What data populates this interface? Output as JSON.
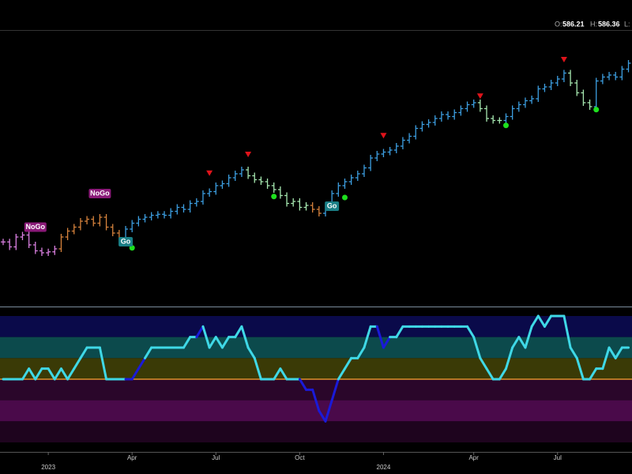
{
  "chart_data": {
    "type": "ohlc",
    "header": {
      "open_label": "O:",
      "open": "586.21",
      "high_label": "H:",
      "high": "586.36",
      "low_label": "L:"
    },
    "categories": [
      null,
      null,
      null,
      null,
      null,
      null,
      null,
      "2023",
      null,
      null,
      null,
      null,
      null,
      null,
      null,
      null,
      null,
      null,
      null,
      null,
      "Apr",
      null,
      null,
      null,
      null,
      null,
      null,
      null,
      null,
      null,
      null,
      null,
      null,
      "Jul",
      null,
      null,
      null,
      null,
      null,
      null,
      null,
      null,
      null,
      null,
      null,
      null,
      "Oct",
      null,
      null,
      null,
      null,
      null,
      null,
      null,
      null,
      null,
      null,
      null,
      null,
      "2024",
      null,
      null,
      null,
      null,
      null,
      null,
      null,
      null,
      null,
      null,
      null,
      null,
      null,
      "Apr",
      null,
      null,
      null,
      null,
      null,
      null,
      null,
      null,
      null,
      null,
      null,
      null,
      "Jul",
      null,
      null,
      null,
      null,
      null,
      null,
      null,
      null,
      null,
      null,
      null
    ],
    "values": [
      405,
      400,
      410,
      412,
      402,
      396,
      394,
      395,
      398,
      410,
      416,
      420,
      426,
      428,
      424,
      430,
      420,
      414,
      408,
      418,
      424,
      428,
      430,
      432,
      433,
      432,
      436,
      440,
      438,
      444,
      446,
      454,
      456,
      462,
      464,
      470,
      474,
      478,
      472,
      468,
      466,
      462,
      458,
      452,
      444,
      446,
      440,
      442,
      438,
      434,
      440,
      454,
      462,
      466,
      470,
      474,
      480,
      490,
      494,
      496,
      498,
      502,
      508,
      512,
      520,
      524,
      526,
      530,
      534,
      532,
      536,
      540,
      544,
      546,
      540,
      530,
      528,
      528,
      532,
      540,
      544,
      548,
      550,
      560,
      562,
      566,
      570,
      576,
      566,
      556,
      546,
      542,
      568,
      572,
      574,
      572,
      580,
      586
    ],
    "colors": [
      "#d97fe0",
      "#d97fe0",
      "#d97fe0",
      "#d97fe0",
      "#d97fe0",
      "#d97fe0",
      "#d97fe0",
      "#d97fe0",
      "#d97fe0",
      "#d6823c",
      "#d6823c",
      "#d6823c",
      "#d6823c",
      "#d6823c",
      "#d6823c",
      "#d6823c",
      "#d6823c",
      "#d6823c",
      "#d6823c",
      "#3c9ee0",
      "#3c9ee0",
      "#3c9ee0",
      "#3c9ee0",
      "#3c9ee0",
      "#3c9ee0",
      "#3c9ee0",
      "#3c9ee0",
      "#3c9ee0",
      "#3c9ee0",
      "#3c9ee0",
      "#3c9ee0",
      "#3c9ee0",
      "#3c9ee0",
      "#3c9ee0",
      "#3c9ee0",
      "#3c9ee0",
      "#3c9ee0",
      "#3c9ee0",
      "#a6e8b0",
      "#a6e8b0",
      "#a6e8b0",
      "#a6e8b0",
      "#a6e8b0",
      "#a6e8b0",
      "#a6e8b0",
      "#a6e8b0",
      "#a6e8b0",
      "#a6e8b0",
      "#d6823c",
      "#d6823c",
      "#3c9ee0",
      "#3c9ee0",
      "#3c9ee0",
      "#3c9ee0",
      "#3c9ee0",
      "#3c9ee0",
      "#3c9ee0",
      "#3c9ee0",
      "#3c9ee0",
      "#3c9ee0",
      "#3c9ee0",
      "#3c9ee0",
      "#3c9ee0",
      "#3c9ee0",
      "#3c9ee0",
      "#3c9ee0",
      "#3c9ee0",
      "#3c9ee0",
      "#3c9ee0",
      "#3c9ee0",
      "#3c9ee0",
      "#3c9ee0",
      "#3c9ee0",
      "#3c9ee0",
      "#a6e8b0",
      "#a6e8b0",
      "#a6e8b0",
      "#a6e8b0",
      "#3c9ee0",
      "#3c9ee0",
      "#3c9ee0",
      "#3c9ee0",
      "#3c9ee0",
      "#3c9ee0",
      "#3c9ee0",
      "#3c9ee0",
      "#3c9ee0",
      "#3c9ee0",
      "#a6e8b0",
      "#a6e8b0",
      "#a6e8b0",
      "#a6e8b0",
      "#3c9ee0",
      "#3c9ee0",
      "#3c9ee0",
      "#3c9ee0",
      "#3c9ee0",
      "#3c9ee0"
    ],
    "ylim": [
      342,
      618
    ],
    "sell_signals": {
      "color": "#e0131a",
      "values": [
        null,
        null,
        null,
        null,
        null,
        null,
        null,
        null,
        null,
        null,
        null,
        null,
        null,
        null,
        null,
        null,
        null,
        null,
        null,
        null,
        null,
        null,
        null,
        null,
        null,
        null,
        null,
        null,
        null,
        null,
        null,
        null,
        475,
        null,
        null,
        null,
        null,
        null,
        494,
        null,
        null,
        null,
        null,
        null,
        null,
        null,
        null,
        null,
        null,
        null,
        null,
        null,
        null,
        null,
        null,
        null,
        null,
        null,
        null,
        513,
        null,
        null,
        null,
        null,
        null,
        null,
        null,
        null,
        null,
        null,
        null,
        null,
        null,
        null,
        553,
        null,
        null,
        null,
        null,
        null,
        null,
        null,
        null,
        null,
        null,
        null,
        null,
        590,
        null,
        null,
        null,
        null,
        null,
        null,
        null,
        null,
        null,
        null
      ]
    },
    "buy_signals": {
      "color": "#1ee01e",
      "values": [
        null,
        null,
        null,
        null,
        null,
        null,
        null,
        null,
        null,
        null,
        null,
        null,
        null,
        null,
        null,
        null,
        null,
        null,
        null,
        null,
        399,
        null,
        null,
        null,
        null,
        null,
        null,
        null,
        null,
        null,
        null,
        null,
        null,
        null,
        null,
        null,
        null,
        null,
        null,
        null,
        null,
        null,
        451,
        null,
        null,
        null,
        null,
        null,
        null,
        null,
        null,
        null,
        null,
        450,
        null,
        null,
        null,
        null,
        null,
        null,
        null,
        null,
        null,
        null,
        null,
        null,
        null,
        null,
        null,
        null,
        null,
        null,
        null,
        null,
        null,
        null,
        null,
        null,
        523,
        null,
        null,
        null,
        null,
        null,
        null,
        null,
        null,
        null,
        null,
        null,
        null,
        null,
        539,
        null,
        null,
        null,
        null,
        null
      ]
    },
    "bar_labels": [
      null,
      null,
      null,
      null,
      null,
      "NoGo",
      null,
      null,
      null,
      null,
      null,
      null,
      null,
      null,
      null,
      "NoGo",
      null,
      null,
      null,
      "Go",
      null,
      null,
      null,
      null,
      null,
      null,
      null,
      null,
      null,
      null,
      null,
      null,
      null,
      null,
      null,
      null,
      null,
      null,
      null,
      null,
      null,
      null,
      null,
      null,
      null,
      null,
      null,
      null,
      null,
      null,
      null,
      "Go",
      null,
      null,
      null,
      null,
      null,
      null,
      null,
      null,
      null,
      null,
      null,
      null,
      null,
      null,
      null,
      null,
      null,
      null,
      null,
      null,
      null,
      null,
      null,
      null,
      null,
      null,
      null,
      null,
      null,
      null,
      null,
      null,
      null,
      null,
      null,
      null,
      null,
      null,
      null,
      null,
      null,
      null,
      null,
      null,
      null,
      null
    ],
    "label_colors": {
      "NoGo": "#8a1a78",
      "Go": "#1a7f86"
    },
    "oscillator": {
      "ylim": [
        -6.75,
        6.75
      ],
      "values": [
        0,
        0,
        0,
        0,
        1,
        0,
        1,
        1,
        0,
        1,
        0,
        1,
        2,
        3,
        3,
        3,
        0,
        0,
        0,
        0,
        0,
        1,
        2,
        3,
        3,
        3,
        3,
        3,
        3,
        4,
        4,
        5,
        3,
        4,
        3,
        4,
        4,
        5,
        3,
        2,
        0,
        0,
        0,
        1,
        0,
        0,
        0,
        -1,
        -1,
        -3,
        -4,
        -2,
        0,
        1,
        2,
        2,
        3,
        5,
        5,
        3,
        4,
        4,
        5,
        5,
        5,
        5,
        5,
        5,
        5,
        5,
        5,
        5,
        5,
        4,
        2,
        1,
        0,
        0,
        1,
        3,
        4,
        3,
        5,
        6,
        5,
        6,
        6,
        6,
        3,
        2,
        0,
        0,
        1,
        1,
        3,
        2,
        3,
        3
      ],
      "colors": [
        "#3fd8e6",
        "#3fd8e6",
        "#3fd8e6",
        "#3fd8e6",
        "#3fd8e6",
        "#3fd8e6",
        "#3fd8e6",
        "#3fd8e6",
        "#3fd8e6",
        "#3fd8e6",
        "#3fd8e6",
        "#3fd8e6",
        "#3fd8e6",
        "#3fd8e6",
        "#3fd8e6",
        "#3fd8e6",
        "#3fd8e6",
        "#3fd8e6",
        "#3fd8e6",
        "#3fd8e6",
        "#1a1ad8",
        "#1a1ad8",
        "#1a1ad8",
        "#3fd8e6",
        "#3fd8e6",
        "#3fd8e6",
        "#3fd8e6",
        "#3fd8e6",
        "#3fd8e6",
        "#3fd8e6",
        "#3fd8e6",
        "#1a1ad8",
        "#3fd8e6",
        "#3fd8e6",
        "#3fd8e6",
        "#3fd8e6",
        "#3fd8e6",
        "#3fd8e6",
        "#3fd8e6",
        "#3fd8e6",
        "#3fd8e6",
        "#3fd8e6",
        "#3fd8e6",
        "#3fd8e6",
        "#3fd8e6",
        "#3fd8e6",
        "#3fd8e6",
        "#1a1ad8",
        "#1a1ad8",
        "#1a1ad8",
        "#1a1ad8",
        "#1a1ad8",
        "#1a1ad8",
        "#3fd8e6",
        "#3fd8e6",
        "#3fd8e6",
        "#3fd8e6",
        "#3fd8e6",
        "#3fd8e6",
        "#1a1ad8",
        "#1a1ad8",
        "#3fd8e6",
        "#3fd8e6",
        "#3fd8e6",
        "#3fd8e6",
        "#3fd8e6",
        "#3fd8e6",
        "#3fd8e6",
        "#3fd8e6",
        "#3fd8e6",
        "#3fd8e6",
        "#3fd8e6",
        "#3fd8e6",
        "#3fd8e6",
        "#3fd8e6",
        "#3fd8e6",
        "#3fd8e6",
        "#3fd8e6",
        "#3fd8e6",
        "#3fd8e6",
        "#3fd8e6",
        "#3fd8e6",
        "#3fd8e6",
        "#3fd8e6",
        "#3fd8e6",
        "#3fd8e6",
        "#3fd8e6",
        "#3fd8e6",
        "#3fd8e6",
        "#3fd8e6",
        "#3fd8e6",
        "#3fd8e6",
        "#3fd8e6",
        "#3fd8e6",
        "#3fd8e6",
        "#3fd8e6",
        "#3fd8e6",
        "#3fd8e6"
      ],
      "bands": [
        {
          "from": 4,
          "to": 6,
          "color": "#0a0a4a"
        },
        {
          "from": 2,
          "to": 4,
          "color": "#0c4a4c"
        },
        {
          "from": 0,
          "to": 2,
          "color": "#3a3a06"
        },
        {
          "from": -2,
          "to": 0,
          "color": "#2a062a"
        },
        {
          "from": -4,
          "to": -2,
          "color": "#4a0a4a"
        },
        {
          "from": -6,
          "to": -4,
          "color": "#1e041e"
        }
      ],
      "zero_line_color": "#e0902c"
    }
  }
}
